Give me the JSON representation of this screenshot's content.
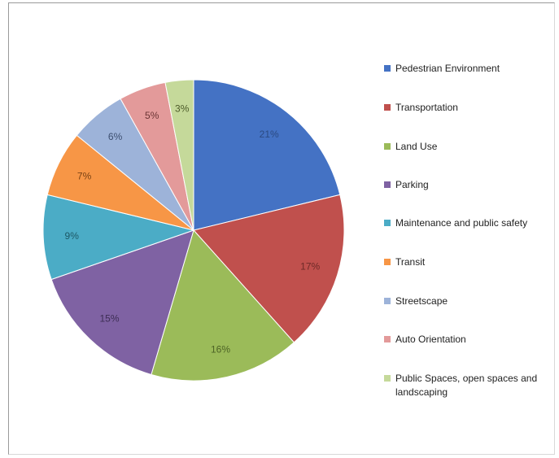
{
  "chart_data": {
    "type": "pie",
    "title": "",
    "legend_position": "right",
    "slices": [
      {
        "label": "Pedestrian Environment",
        "value": 21,
        "display": "21%",
        "color": "#4472C4",
        "label_color": "#2b4a82"
      },
      {
        "label": "Transportation",
        "value": 17,
        "display": "17%",
        "color": "#C0504D",
        "label_color": "#6e2a28"
      },
      {
        "label": "Land Use",
        "value": 16,
        "display": "16%",
        "color": "#9BBB59",
        "label_color": "#4d6326"
      },
      {
        "label": "Parking",
        "value": 15,
        "display": "15%",
        "color": "#7F62A3",
        "label_color": "#3e2e55"
      },
      {
        "label": "Maintenance and public safety",
        "value": 9,
        "display": "9%",
        "color": "#4BACC6",
        "label_color": "#1d5866"
      },
      {
        "label": "Transit",
        "value": 7,
        "display": "7%",
        "color": "#F79646",
        "label_color": "#7a4214"
      },
      {
        "label": "Streetscape",
        "value": 6,
        "display": "6%",
        "color": "#9DB3D9",
        "label_color": "#3d4f70"
      },
      {
        "label": "Auto Orientation",
        "value": 5,
        "display": "5%",
        "color": "#E39A9A",
        "label_color": "#6b3535"
      },
      {
        "label": "Public Spaces, open spaces and landscaping",
        "value": 3,
        "display": "3%",
        "color": "#C5D99A",
        "label_color": "#4d5c2a"
      }
    ]
  }
}
